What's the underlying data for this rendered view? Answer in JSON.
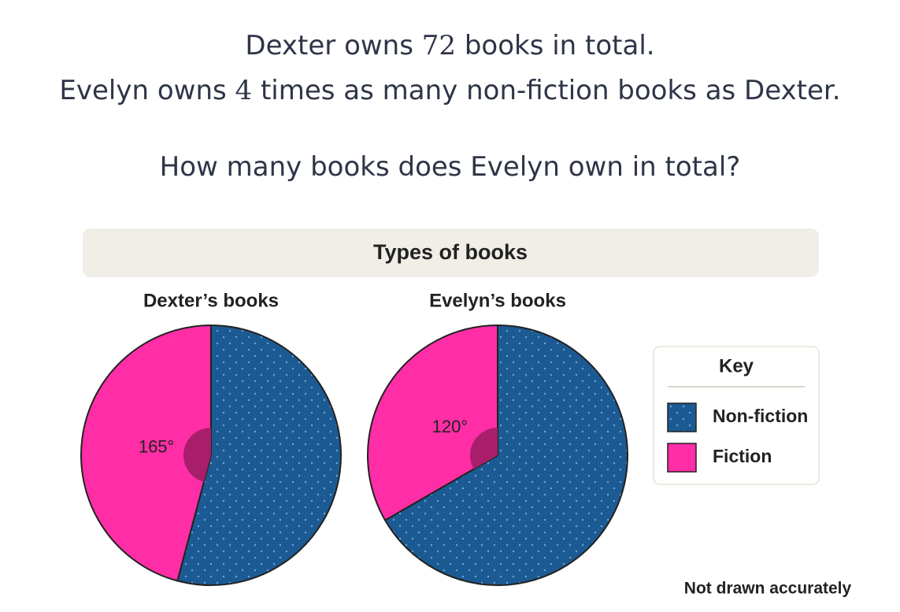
{
  "question": {
    "line1": [
      "Dexter owns ",
      "72",
      " books in total."
    ],
    "line2": [
      "Evelyn owns ",
      "4",
      " times as many non-fiction books as Dexter."
    ],
    "line3": "How many books does Evelyn own in total?"
  },
  "figure": {
    "title": "Types of books",
    "key_title": "Key",
    "note": "Not drawn accurately"
  },
  "chart_data": [
    {
      "type": "pie",
      "title": "Dexter’s books",
      "categories": [
        "Non-fiction",
        "Fiction"
      ],
      "values": [
        195,
        165
      ],
      "value_labels": [
        null,
        "165°"
      ],
      "colors": [
        "#1c5a93",
        "#ff2ea6"
      ]
    },
    {
      "type": "pie",
      "title": "Evelyn’s books",
      "categories": [
        "Non-fiction",
        "Fiction"
      ],
      "values": [
        240,
        120
      ],
      "value_labels": [
        null,
        "120°"
      ],
      "colors": [
        "#1c5a93",
        "#ff2ea6"
      ]
    }
  ]
}
